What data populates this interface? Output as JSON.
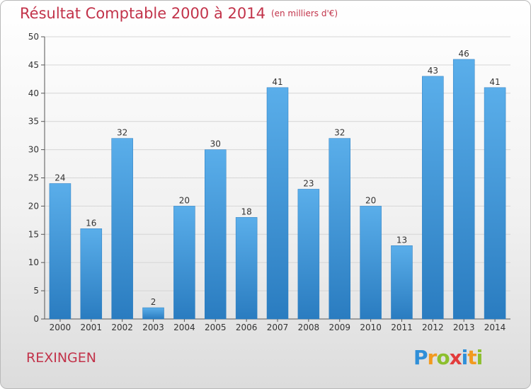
{
  "chart_data": {
    "type": "bar",
    "title": "Résultat Comptable 2000 à 2014",
    "subtitle": "(en milliers d'€)",
    "categories": [
      "2000",
      "2001",
      "2002",
      "2003",
      "2004",
      "2005",
      "2006",
      "2007",
      "2008",
      "2009",
      "2010",
      "2011",
      "2012",
      "2013",
      "2014"
    ],
    "values": [
      24,
      16,
      32,
      2,
      20,
      30,
      18,
      41,
      23,
      32,
      20,
      13,
      43,
      46,
      41
    ],
    "ylim": [
      0,
      50
    ],
    "yticks": [
      0,
      5,
      10,
      15,
      20,
      25,
      30,
      35,
      40,
      45,
      50
    ],
    "grid": true,
    "bar_color": "#3d96dc"
  },
  "footer": {
    "commune": "REXINGEN",
    "logo_letters": [
      "P",
      "r",
      "o",
      "x",
      "i",
      "t",
      "i"
    ],
    "logo_colors": [
      "#2f8fd8",
      "#f29a1f",
      "#8cbf2d",
      "#e23c3c",
      "#2f8fd8",
      "#f29a1f",
      "#8cbf2d"
    ]
  }
}
